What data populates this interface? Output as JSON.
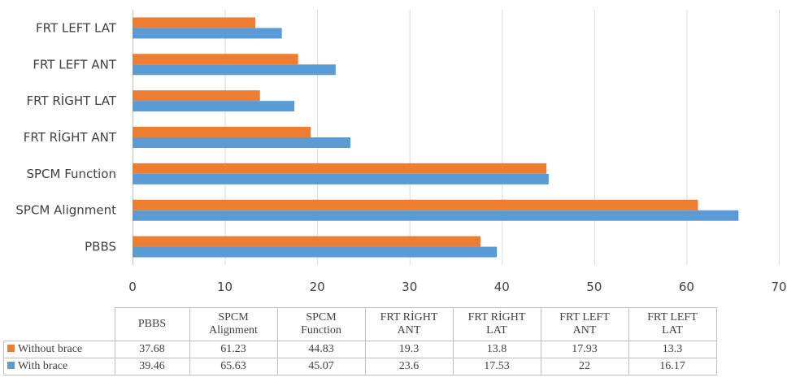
{
  "chart_data": {
    "type": "bar",
    "orientation": "horizontal",
    "categories": [
      "PBBS",
      "SPCM Alignment",
      "SPCM Function",
      "FRT RİGHT ANT",
      "FRT RİGHT LAT",
      "FRT LEFT ANT",
      "FRT LEFT LAT"
    ],
    "table_headers": [
      [
        "PBBS"
      ],
      [
        "SPCM",
        "Alignment"
      ],
      [
        "SPCM",
        "Function"
      ],
      [
        "FRT RİGHT",
        "ANT"
      ],
      [
        "FRT RİGHT",
        "LAT"
      ],
      [
        "FRT LEFT",
        "ANT"
      ],
      [
        "FRT LEFT",
        "LAT"
      ]
    ],
    "series": [
      {
        "name": "Without brace",
        "color": "#ed7d31",
        "values": [
          37.68,
          61.23,
          44.83,
          19.3,
          13.8,
          17.93,
          13.3
        ]
      },
      {
        "name": "With brace",
        "color": "#5b9bd5",
        "values": [
          39.46,
          65.63,
          45.07,
          23.6,
          17.53,
          22,
          16.17
        ]
      }
    ],
    "xlim": [
      0,
      70
    ],
    "xticks": [
      0,
      10,
      20,
      30,
      40,
      50,
      60,
      70
    ],
    "grid": true,
    "legend": "data-table-below"
  }
}
